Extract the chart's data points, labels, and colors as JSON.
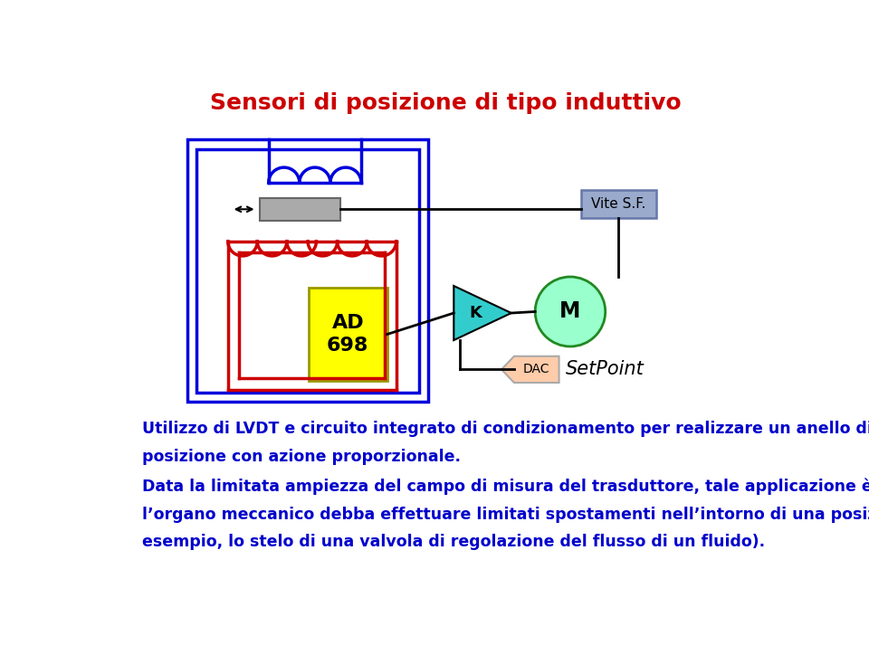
{
  "title": "Sensori di posizione di tipo induttivo",
  "title_color": "#CC0000",
  "title_fontsize": 18,
  "text_color": "#0000CC",
  "bg_color": "#FFFFFF",
  "paragraph1": "Utilizzo di LVDT e circuito integrato di condizionamento per realizzare un anello di controllo di\nposizione con azione proporzionale.",
  "paragraph2": "Data la limitata ampiezza del campo di misura del trasduttore, tale applicazione è idonea laddove\nl’organo meccanico debba effettuare limitati spostamenti nell’intorno di una posizione di riposo (ad\nesempio, lo stelo di una valvola di regolazione del flusso di un fluido).",
  "text_fontsize": 12.5,
  "blue_rect_color": "#0000DD",
  "coil_blue_color": "#0000DD",
  "coil_red_color": "#CC0000",
  "core_color": "#AAAAAA",
  "ad698_color": "#FFFF00",
  "ad698_border": "#999900",
  "vite_color": "#99AACC",
  "vite_border": "#6677AA",
  "amp_color": "#33CCCC",
  "motor_color": "#99FFCC",
  "motor_border": "#228822",
  "dac_color": "#FFCCAA",
  "dac_border": "#AAAAAA"
}
